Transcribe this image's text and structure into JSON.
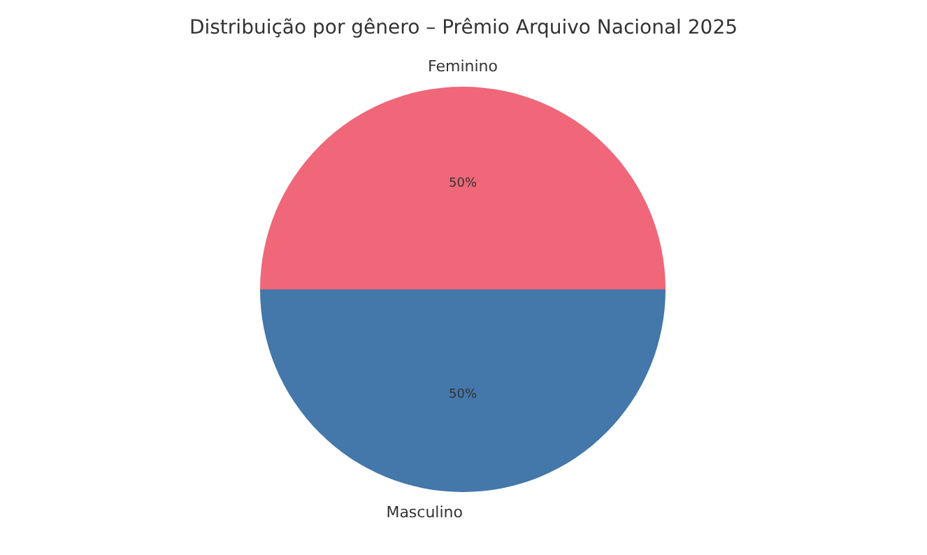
{
  "chart_data": {
    "type": "pie",
    "title": "Distribuição por gênero – Prêmio Arquivo Nacional 2025",
    "categories": [
      "Feminino",
      "Masculino"
    ],
    "values": [
      50,
      50
    ],
    "value_labels": [
      "50%",
      "50%"
    ],
    "colors": [
      "#ef6779",
      "#4477aa"
    ],
    "legend": false
  }
}
